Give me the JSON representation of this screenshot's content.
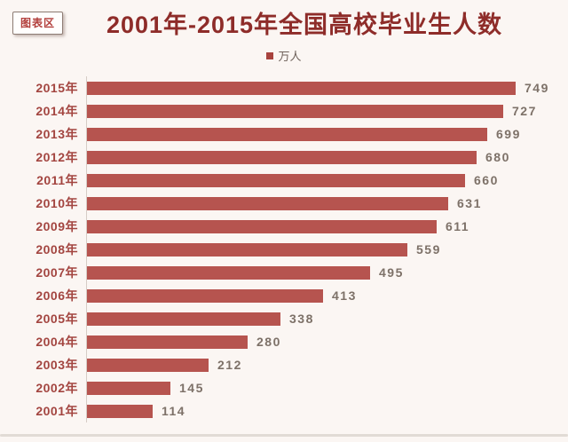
{
  "tooltip": {
    "label": "图表区"
  },
  "header": {
    "title": "2001年-2015年全国高校毕业生人数"
  },
  "legend": {
    "label": "万人",
    "marker_color": "#a8433e"
  },
  "chart_data": {
    "type": "bar",
    "orientation": "horizontal",
    "title": "2001年-2015年全国高校毕业生人数",
    "series_name": "万人",
    "categories": [
      "2015年",
      "2014年",
      "2013年",
      "2012年",
      "2011年",
      "2010年",
      "2009年",
      "2008年",
      "2007年",
      "2006年",
      "2005年",
      "2004年",
      "2003年",
      "2002年",
      "2001年"
    ],
    "values": [
      749,
      727,
      699,
      680,
      660,
      631,
      611,
      559,
      495,
      413,
      338,
      280,
      212,
      145,
      114
    ],
    "xlabel": "",
    "ylabel": "",
    "xlim": [
      0,
      800
    ],
    "grid": false,
    "legend_position": "top",
    "value_labels_shown": true,
    "bar_color": "#b6544f"
  }
}
